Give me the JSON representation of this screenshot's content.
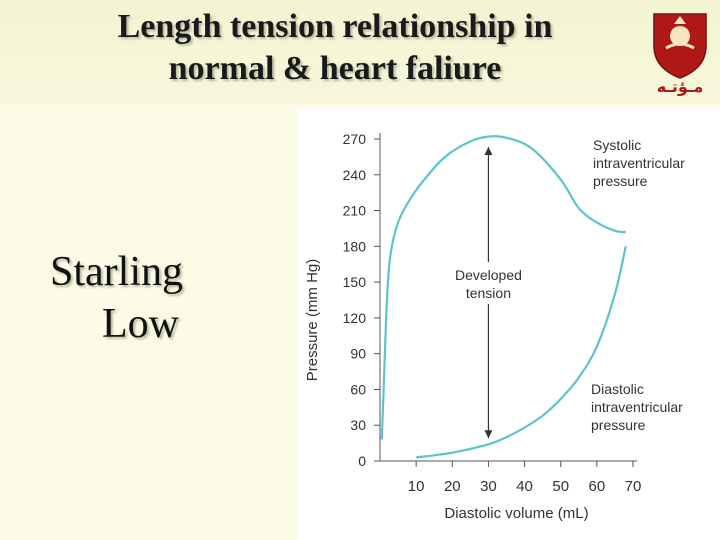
{
  "slide": {
    "title_line1": "Length tension relationship in",
    "title_line2": "normal & heart faliure",
    "side_line1": "Starling",
    "side_line2": "Low",
    "logo_text": "مـؤتـه"
  },
  "colors": {
    "curve": "#5bc4cf",
    "axis": "#555555",
    "background": "#fbfbe6",
    "logo_red": "#b01818"
  },
  "chart_data": {
    "type": "line",
    "title": "",
    "xlabel": "Diastolic volume (mL)",
    "ylabel": "Pressure (mm Hg)",
    "xlim": [
      0,
      70
    ],
    "ylim": [
      0,
      270
    ],
    "xticks": [
      10,
      20,
      30,
      40,
      50,
      60,
      70
    ],
    "yticks": [
      0,
      30,
      60,
      90,
      120,
      150,
      180,
      210,
      240,
      270
    ],
    "grid": false,
    "series": [
      {
        "name": "Systolic intraventricular pressure",
        "x": [
          0.5,
          1,
          2,
          3,
          5,
          8,
          12,
          18,
          25,
          30,
          35,
          42,
          50,
          55,
          60,
          65,
          68
        ],
        "y": [
          18,
          60,
          140,
          175,
          200,
          218,
          235,
          255,
          268,
          272,
          271,
          262,
          236,
          212,
          200,
          193,
          192
        ]
      },
      {
        "name": "Diastolic intraventricular pressure",
        "x": [
          10,
          20,
          30,
          35,
          40,
          45,
          50,
          55,
          60,
          65,
          68
        ],
        "y": [
          3,
          7,
          14,
          20,
          28,
          38,
          52,
          70,
          96,
          140,
          180
        ]
      }
    ],
    "annotations": [
      {
        "text": "Developed tension",
        "line1": "Developed",
        "line2": "tension",
        "x": 30,
        "y_from": 14,
        "y_to": 270
      }
    ],
    "labels": {
      "systolic": [
        "Systolic",
        "intraventricular",
        "pressure"
      ],
      "diastolic": [
        "Diastolic",
        "intraventricular",
        "pressure"
      ]
    }
  }
}
